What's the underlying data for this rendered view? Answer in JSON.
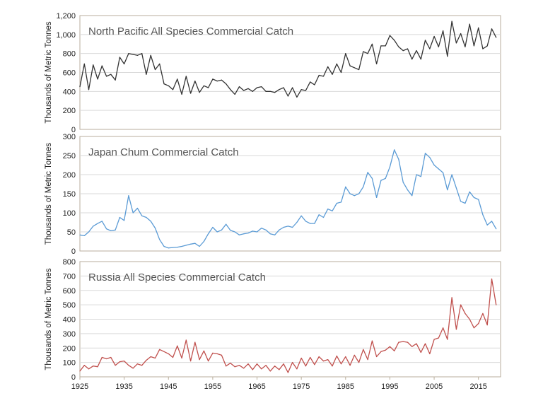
{
  "chart_data": [
    {
      "type": "line",
      "title": "North Pacific All Species Commercial Catch",
      "xlabel": "",
      "ylabel": "Thousands of Metric Tonnes",
      "xlim": [
        1925,
        2020
      ],
      "ylim": [
        0,
        1200
      ],
      "yticks": [
        0,
        200,
        400,
        600,
        800,
        1000,
        1200
      ],
      "ytick_labels": [
        "0",
        "200",
        "400",
        "600",
        "800",
        "1,000",
        "1,200"
      ],
      "xticks": [
        1925,
        1935,
        1945,
        1955,
        1965,
        1975,
        1985,
        1995,
        2005,
        2015
      ],
      "show_xtick_labels": false,
      "grid": "horizontal",
      "color": "#333333",
      "x": [
        1925,
        1926,
        1927,
        1928,
        1929,
        1930,
        1931,
        1932,
        1933,
        1934,
        1935,
        1936,
        1937,
        1938,
        1939,
        1940,
        1941,
        1942,
        1943,
        1944,
        1945,
        1946,
        1947,
        1948,
        1949,
        1950,
        1951,
        1952,
        1953,
        1954,
        1955,
        1956,
        1957,
        1958,
        1959,
        1960,
        1961,
        1962,
        1963,
        1964,
        1965,
        1966,
        1967,
        1968,
        1969,
        1970,
        1971,
        1972,
        1973,
        1974,
        1975,
        1976,
        1977,
        1978,
        1979,
        1980,
        1981,
        1982,
        1983,
        1984,
        1985,
        1986,
        1987,
        1988,
        1989,
        1990,
        1991,
        1992,
        1993,
        1994,
        1995,
        1996,
        1997,
        1998,
        1999,
        2000,
        2001,
        2002,
        2003,
        2004,
        2005,
        2006,
        2007,
        2008,
        2009,
        2010,
        2011,
        2012,
        2013,
        2014,
        2015,
        2016,
        2017,
        2018,
        2019
      ],
      "values": [
        450,
        690,
        420,
        680,
        530,
        670,
        560,
        580,
        520,
        760,
        690,
        800,
        790,
        780,
        800,
        580,
        780,
        630,
        690,
        480,
        460,
        420,
        530,
        370,
        560,
        380,
        510,
        390,
        460,
        440,
        530,
        510,
        520,
        480,
        420,
        370,
        450,
        410,
        430,
        400,
        440,
        450,
        400,
        400,
        390,
        420,
        440,
        350,
        440,
        340,
        420,
        410,
        500,
        470,
        570,
        560,
        660,
        580,
        690,
        600,
        800,
        670,
        650,
        630,
        820,
        800,
        900,
        690,
        880,
        880,
        990,
        940,
        870,
        830,
        850,
        740,
        830,
        740,
        940,
        850,
        980,
        870,
        1040,
        770,
        1140,
        910,
        1010,
        870,
        1110,
        880,
        1070,
        850,
        880,
        1060,
        970
      ]
    },
    {
      "type": "line",
      "title": "Japan Chum Commercial Catch",
      "xlabel": "",
      "ylabel": "Thousands of Metric Tonnes",
      "xlim": [
        1925,
        2020
      ],
      "ylim": [
        0,
        300
      ],
      "yticks": [
        0,
        50,
        100,
        150,
        200,
        250,
        300
      ],
      "ytick_labels": [
        "0",
        "50",
        "100",
        "150",
        "200",
        "250",
        "300"
      ],
      "xticks": [
        1925,
        1935,
        1945,
        1955,
        1965,
        1975,
        1985,
        1995,
        2005,
        2015
      ],
      "show_xtick_labels": false,
      "grid": "horizontal",
      "color": "#5b9bd5",
      "x": [
        1925,
        1926,
        1927,
        1928,
        1929,
        1930,
        1931,
        1932,
        1933,
        1934,
        1935,
        1936,
        1937,
        1938,
        1939,
        1940,
        1941,
        1942,
        1943,
        1944,
        1945,
        1946,
        1947,
        1948,
        1949,
        1950,
        1951,
        1952,
        1953,
        1954,
        1955,
        1956,
        1957,
        1958,
        1959,
        1960,
        1961,
        1962,
        1963,
        1964,
        1965,
        1966,
        1967,
        1968,
        1969,
        1970,
        1971,
        1972,
        1973,
        1974,
        1975,
        1976,
        1977,
        1978,
        1979,
        1980,
        1981,
        1982,
        1983,
        1984,
        1985,
        1986,
        1987,
        1988,
        1989,
        1990,
        1991,
        1992,
        1993,
        1994,
        1995,
        1996,
        1997,
        1998,
        1999,
        2000,
        2001,
        2002,
        2003,
        2004,
        2005,
        2006,
        2007,
        2008,
        2009,
        2010,
        2011,
        2012,
        2013,
        2014,
        2015,
        2016,
        2017,
        2018,
        2019
      ],
      "values": [
        42,
        40,
        50,
        65,
        72,
        78,
        58,
        53,
        55,
        88,
        80,
        145,
        100,
        112,
        92,
        88,
        78,
        60,
        30,
        12,
        8,
        9,
        10,
        12,
        15,
        18,
        20,
        12,
        25,
        45,
        62,
        50,
        55,
        70,
        54,
        50,
        42,
        45,
        47,
        52,
        50,
        60,
        55,
        45,
        42,
        55,
        62,
        65,
        62,
        75,
        92,
        78,
        72,
        72,
        95,
        88,
        110,
        105,
        125,
        128,
        168,
        150,
        145,
        150,
        168,
        206,
        190,
        140,
        185,
        190,
        220,
        265,
        240,
        180,
        160,
        145,
        200,
        195,
        256,
        245,
        225,
        215,
        205,
        160,
        200,
        165,
        130,
        125,
        155,
        140,
        135,
        95,
        68,
        78,
        58
      ]
    },
    {
      "type": "line",
      "title": "Russia All Species Commercial Catch",
      "xlabel": "",
      "ylabel": "Thousands of Metric Tonnes",
      "xlim": [
        1925,
        2020
      ],
      "ylim": [
        0,
        800
      ],
      "yticks": [
        0,
        100,
        200,
        300,
        400,
        500,
        600,
        700,
        800
      ],
      "ytick_labels": [
        "0",
        "100",
        "200",
        "300",
        "400",
        "500",
        "600",
        "700",
        "800"
      ],
      "xticks": [
        1925,
        1935,
        1945,
        1955,
        1965,
        1975,
        1985,
        1995,
        2005,
        2015
      ],
      "xtick_labels": [
        "1925",
        "1935",
        "1945",
        "1955",
        "1965",
        "1975",
        "1985",
        "1995",
        "2005",
        "2015"
      ],
      "show_xtick_labels": true,
      "grid": "horizontal",
      "color": "#c0504d",
      "x": [
        1925,
        1926,
        1927,
        1928,
        1929,
        1930,
        1931,
        1932,
        1933,
        1934,
        1935,
        1936,
        1937,
        1938,
        1939,
        1940,
        1941,
        1942,
        1943,
        1944,
        1945,
        1946,
        1947,
        1948,
        1949,
        1950,
        1951,
        1952,
        1953,
        1954,
        1955,
        1956,
        1957,
        1958,
        1959,
        1960,
        1961,
        1962,
        1963,
        1964,
        1965,
        1966,
        1967,
        1968,
        1969,
        1970,
        1971,
        1972,
        1973,
        1974,
        1975,
        1976,
        1977,
        1978,
        1979,
        1980,
        1981,
        1982,
        1983,
        1984,
        1985,
        1986,
        1987,
        1988,
        1989,
        1990,
        1991,
        1992,
        1993,
        1994,
        1995,
        1996,
        1997,
        1998,
        1999,
        2000,
        2001,
        2002,
        2003,
        2004,
        2005,
        2006,
        2007,
        2008,
        2009,
        2010,
        2011,
        2012,
        2013,
        2014,
        2015,
        2016,
        2017,
        2018,
        2019
      ],
      "values": [
        40,
        80,
        55,
        75,
        70,
        135,
        125,
        135,
        80,
        105,
        110,
        80,
        60,
        90,
        80,
        115,
        140,
        130,
        190,
        175,
        160,
        135,
        215,
        130,
        255,
        110,
        240,
        120,
        180,
        110,
        165,
        160,
        150,
        75,
        95,
        70,
        80,
        60,
        90,
        50,
        90,
        55,
        80,
        40,
        75,
        50,
        90,
        30,
        100,
        55,
        130,
        75,
        135,
        85,
        140,
        110,
        120,
        75,
        145,
        90,
        140,
        80,
        150,
        100,
        190,
        120,
        250,
        140,
        175,
        185,
        210,
        180,
        240,
        245,
        240,
        210,
        230,
        170,
        230,
        160,
        260,
        270,
        340,
        260,
        550,
        330,
        500,
        440,
        400,
        340,
        370,
        440,
        360,
        680,
        500
      ]
    }
  ]
}
